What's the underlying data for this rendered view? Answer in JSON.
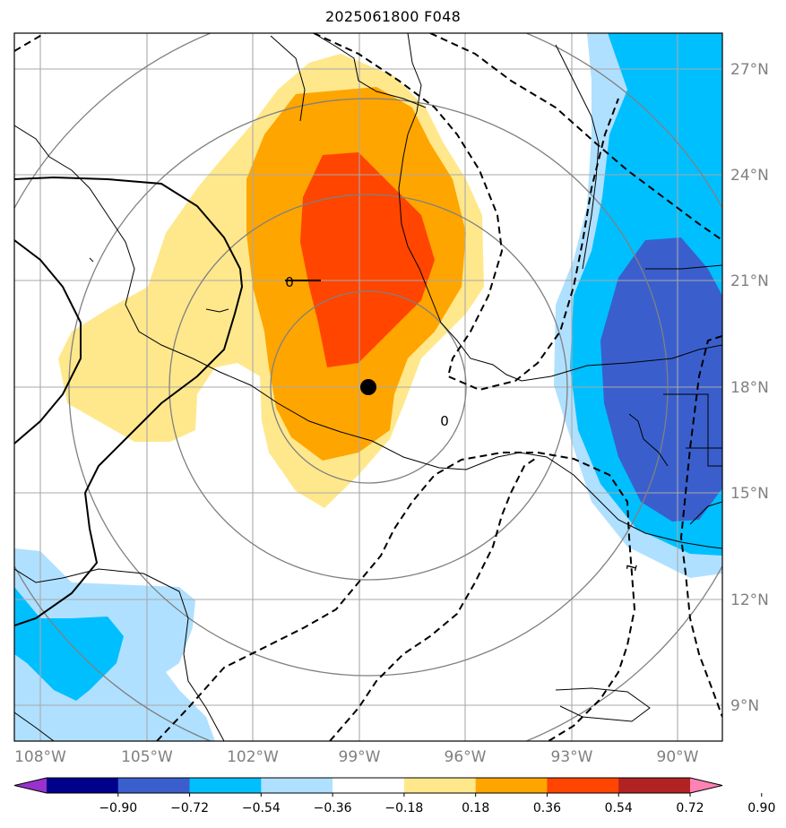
{
  "title": "2025061800 F048",
  "map": {
    "lat_labels": [
      "27°N",
      "24°N",
      "21°N",
      "18°N",
      "15°N",
      "12°N",
      "9°N"
    ],
    "lon_labels": [
      "108°W",
      "105°W",
      "102°W",
      "99°W",
      "96°W",
      "93°W",
      "90°W"
    ],
    "contour_labels": [
      "0",
      "0",
      "1"
    ],
    "center_marker": {
      "lon": -98.8,
      "lat": 18.0
    }
  },
  "colorbar": {
    "colors": [
      "#9932cc",
      "#00008b",
      "#3a5fcd",
      "#00bfff",
      "#b0e0ff",
      "#ffffff",
      "#ffe88c",
      "#ffa500",
      "#ff4500",
      "#b22222",
      "#ff82b4"
    ],
    "labels": [
      "−0.90",
      "−0.72",
      "−0.54",
      "−0.36",
      "−0.18",
      "0.18",
      "0.36",
      "0.54",
      "0.72",
      "0.90"
    ]
  }
}
